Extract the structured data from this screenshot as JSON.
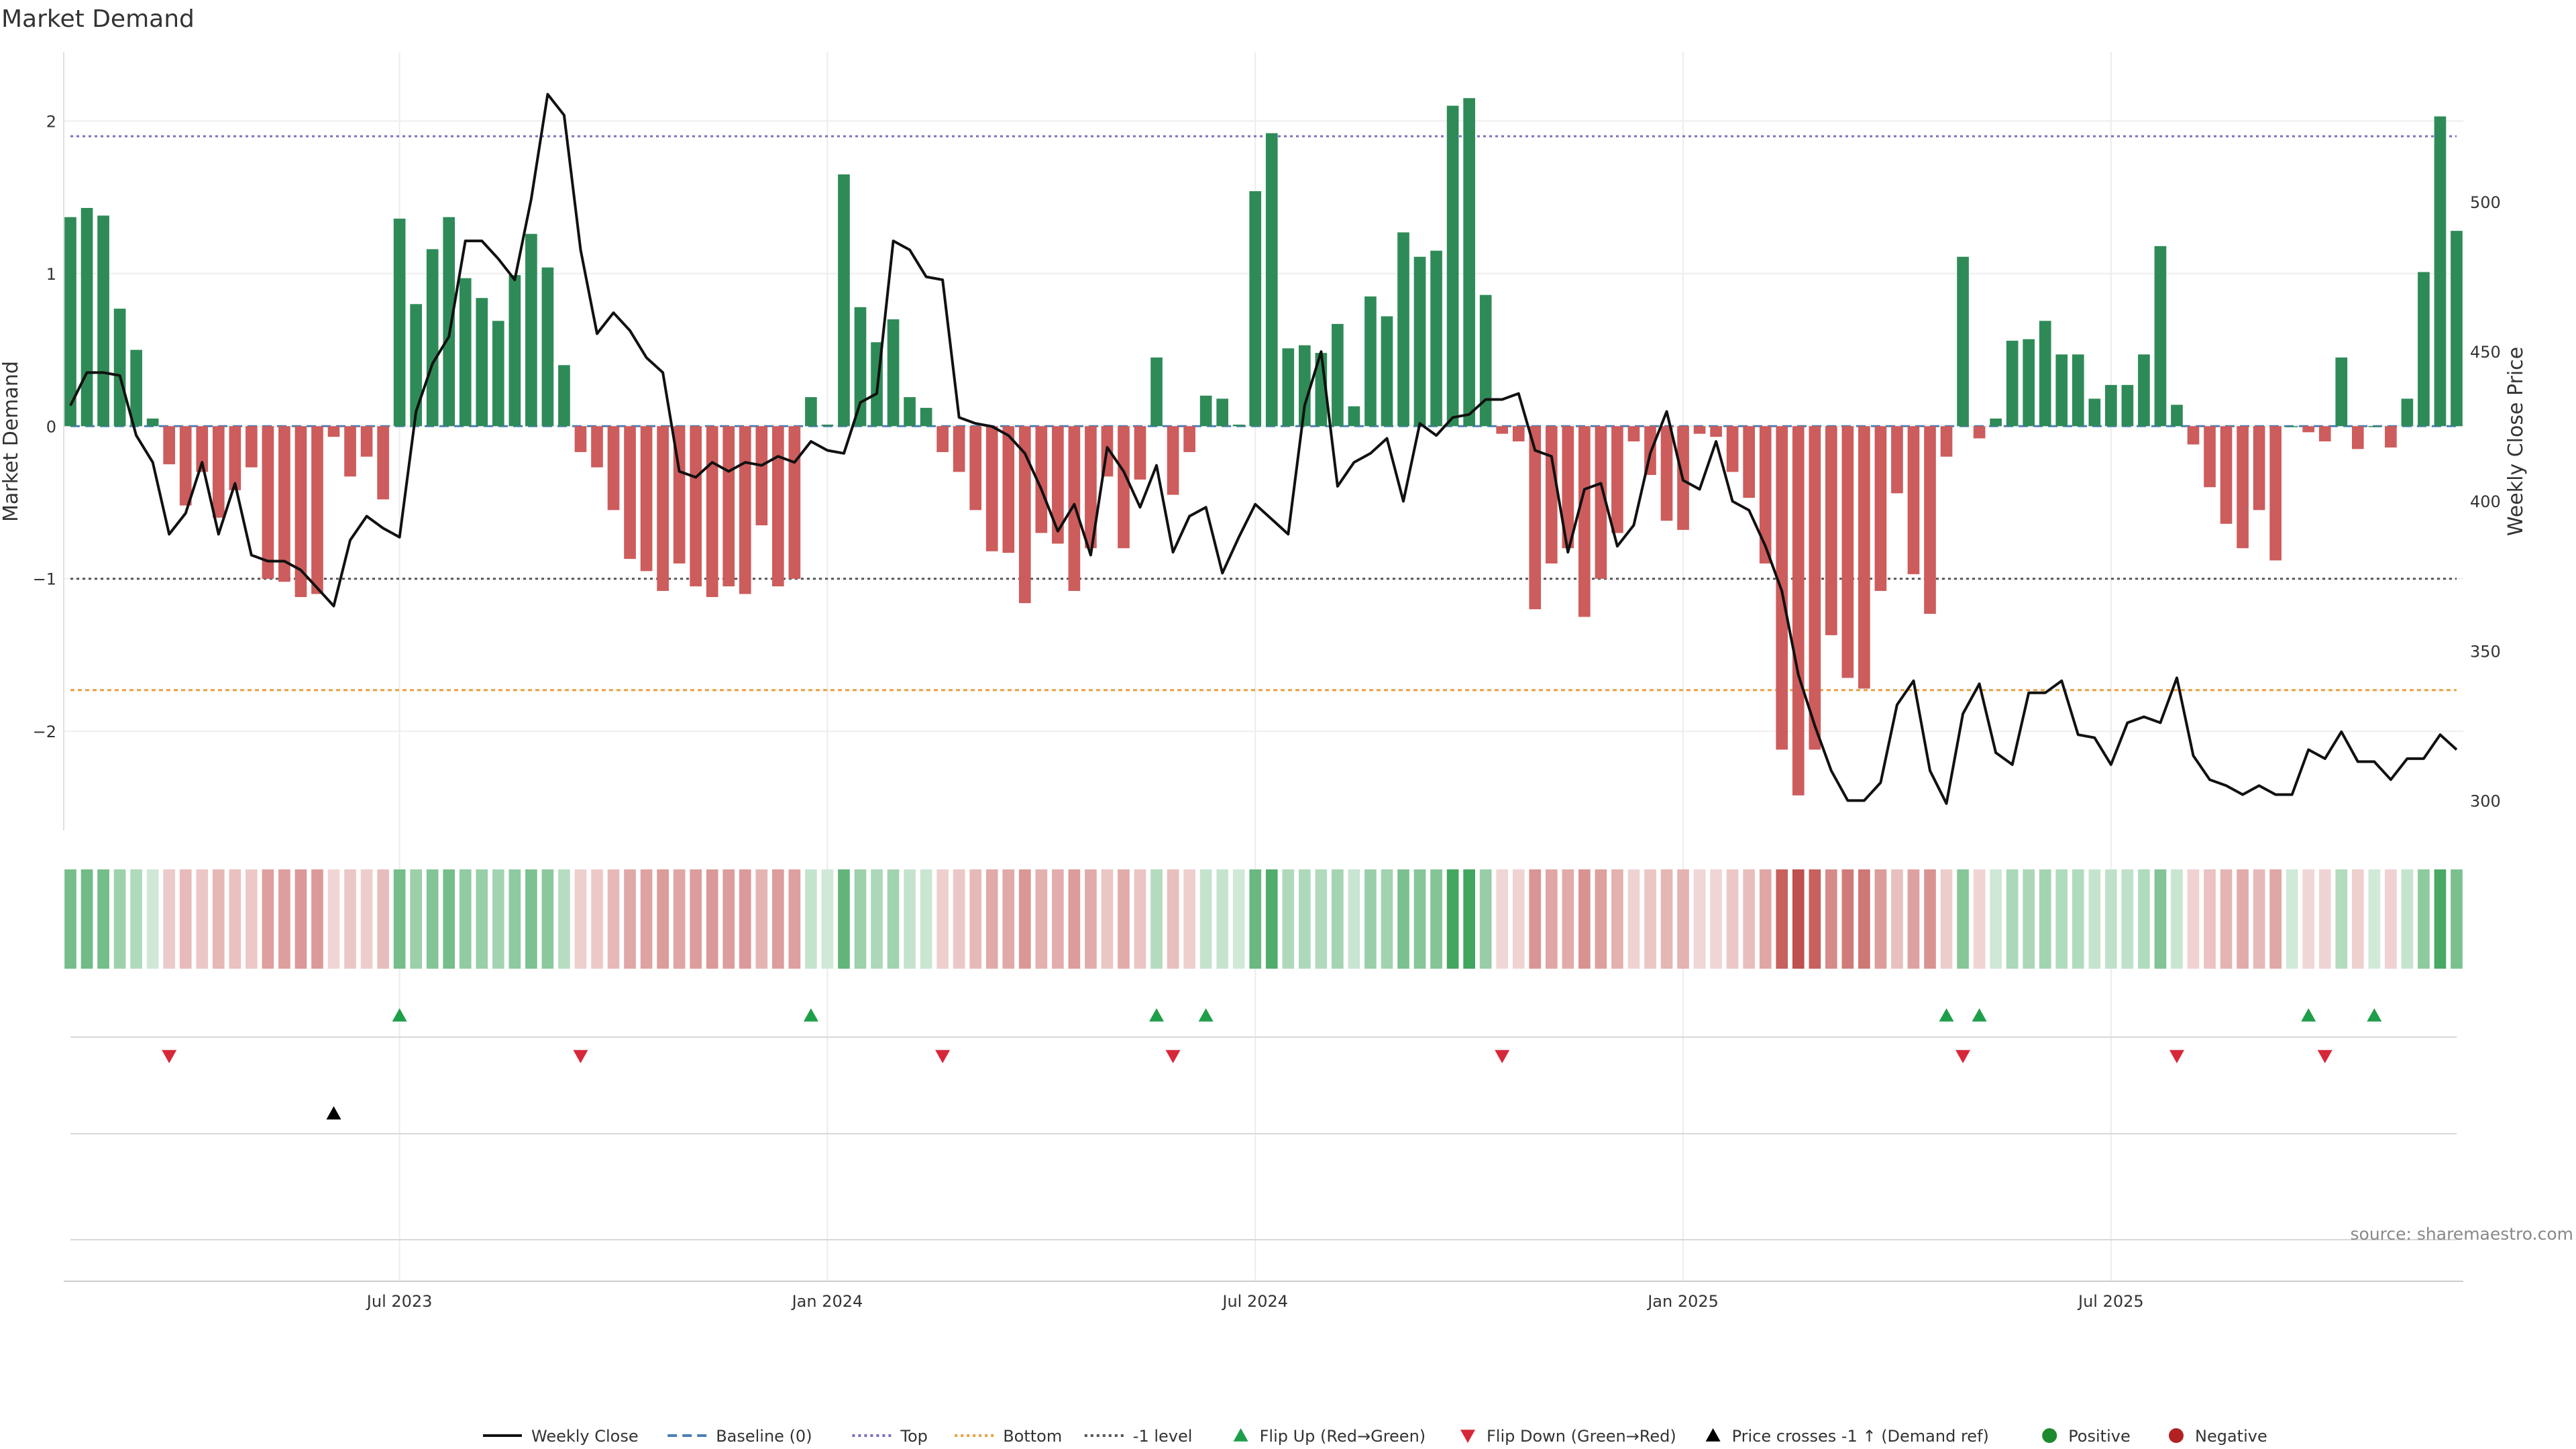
{
  "chart_data": {
    "type": "bar",
    "title": "Market Demand",
    "ylabel": "Market Demand",
    "y2label": "Weekly Close Price",
    "ylim": [
      -2.65,
      2.45
    ],
    "y2lim": [
      290,
      550
    ],
    "yticks": [
      2,
      1,
      0,
      -1,
      -2
    ],
    "y2ticks": [
      500,
      450,
      400,
      350,
      300
    ],
    "x_tick_labels": [
      "Jul 2023",
      "Jan 2024",
      "Jul 2024",
      "Jan 2025",
      "Jul 2025"
    ],
    "x_tick_index": [
      20,
      46,
      72,
      98,
      124
    ],
    "reference_lines": {
      "top": 1.9,
      "baseline": 0,
      "minus_one": -1,
      "bottom": -1.73
    },
    "demand": [
      1.37,
      1.43,
      1.38,
      0.77,
      0.5,
      0.05,
      -0.25,
      -0.52,
      -0.3,
      -0.6,
      -0.42,
      -0.27,
      -1.0,
      -1.02,
      -1.12,
      -1.1,
      -0.07,
      -0.33,
      -0.2,
      -0.48,
      1.36,
      0.8,
      1.16,
      1.37,
      0.97,
      0.84,
      0.69,
      0.99,
      1.26,
      1.04,
      0.4,
      -0.17,
      -0.27,
      -0.55,
      -0.87,
      -0.95,
      -1.08,
      -0.9,
      -1.05,
      -1.12,
      -1.05,
      -1.1,
      -0.65,
      -1.05,
      -1.0,
      0.19,
      0.01,
      1.65,
      0.78,
      0.55,
      0.7,
      0.19,
      0.12,
      -0.17,
      -0.3,
      -0.55,
      -0.82,
      -0.83,
      -1.16,
      -0.7,
      -0.77,
      -1.08,
      -0.8,
      -0.33,
      -0.8,
      -0.35,
      0.45,
      -0.45,
      -0.17,
      0.2,
      0.18,
      0.01,
      1.54,
      1.92,
      0.51,
      0.53,
      0.48,
      0.67,
      0.13,
      0.85,
      0.72,
      1.27,
      1.11,
      1.15,
      2.1,
      2.15,
      0.86,
      -0.05,
      -0.1,
      -1.2,
      -0.9,
      -0.8,
      -1.25,
      -1.0,
      -0.7,
      -0.1,
      -0.32,
      -0.62,
      -0.68,
      -0.05,
      -0.07,
      -0.3,
      -0.47,
      -0.9,
      -2.12,
      -2.42,
      -2.12,
      -1.37,
      -1.65,
      -1.72,
      -1.08,
      -0.44,
      -0.97,
      -1.23,
      -0.2,
      1.11,
      -0.08,
      0.05,
      0.56,
      0.57,
      0.69,
      0.47,
      0.47,
      0.18,
      0.27,
      0.27,
      0.47,
      1.18,
      0.14,
      -0.12,
      -0.4,
      -0.64,
      -0.8,
      -0.55,
      -0.88,
      0.0,
      -0.04,
      -0.1,
      0.45,
      -0.15,
      0.0,
      -0.14,
      0.18,
      1.01,
      2.03,
      1.28
    ],
    "weekly_close": [
      432,
      443,
      443,
      442,
      422,
      413,
      389,
      396,
      413,
      389,
      406,
      382,
      380,
      380,
      377,
      371,
      365,
      387,
      395,
      391,
      388,
      430,
      446,
      455,
      487,
      487,
      481,
      474,
      501,
      536,
      529,
      484,
      456,
      463,
      457,
      448,
      443,
      410,
      408,
      413,
      410,
      413,
      412,
      415,
      413,
      420,
      417,
      416,
      433,
      436,
      487,
      484,
      475,
      474,
      428,
      426,
      425,
      422,
      416,
      404,
      390,
      399,
      382,
      418,
      410,
      398,
      412,
      383,
      395,
      398,
      376,
      388,
      399,
      394,
      389,
      432,
      450,
      405,
      413,
      416,
      421,
      400,
      426,
      422,
      428,
      429,
      434,
      434,
      436,
      417,
      415,
      383,
      404,
      406,
      385,
      392,
      416,
      430,
      407,
      404,
      420,
      400,
      397,
      385,
      370,
      342,
      325,
      310,
      300,
      300,
      306,
      332,
      340,
      310,
      299,
      329,
      339,
      316,
      312,
      336,
      336,
      340,
      322,
      321,
      312,
      326,
      328,
      326,
      341,
      315,
      307,
      305,
      302,
      305,
      302,
      302,
      317,
      314,
      323,
      313,
      313,
      307,
      314,
      314,
      322,
      317
    ]
  },
  "source": "source: sharemaestro.com",
  "flip_up_index": [
    20,
    45,
    66,
    69,
    114,
    116,
    136,
    140
  ],
  "flip_down_index": [
    6,
    31,
    53,
    67,
    87,
    115,
    128,
    137
  ],
  "price_cross_index": [
    16
  ],
  "colors": {
    "positive": "#2e8b57",
    "negative": "#cd5c5c",
    "price": "#111111",
    "flip_up": "#1f9e4a",
    "flip_down": "#d62839",
    "cross": "#000000",
    "top_line": "#7b6fc0",
    "bottom_line": "#e8a040",
    "minus_one_line": "#555555",
    "baseline_line": "#4a7fb5",
    "dot_positive": "#1e8a2e",
    "dot_negative": "#b22222"
  },
  "legend": [
    {
      "label": "Weekly Close",
      "kind": "line-solid",
      "color": "#111111"
    },
    {
      "label": "Baseline (0)",
      "kind": "line-dashed",
      "color": "#4a7fb5"
    },
    {
      "label": "Top",
      "kind": "line-dotted",
      "color": "#7b6fc0"
    },
    {
      "label": "Bottom",
      "kind": "line-dotted",
      "color": "#e8a040"
    },
    {
      "label": "-1 level",
      "kind": "line-dotted",
      "color": "#555555"
    },
    {
      "label": "Flip Up (Red→Green)",
      "kind": "tri-up",
      "color": "#1f9e4a"
    },
    {
      "label": "Flip Down (Green→Red)",
      "kind": "tri-down",
      "color": "#d62839"
    },
    {
      "label": "Price crosses -1 ↑ (Demand ref)",
      "kind": "tri-up",
      "color": "#000000"
    },
    {
      "label": "Positive",
      "kind": "dot",
      "color": "#1e8a2e"
    },
    {
      "label": "Negative",
      "kind": "dot",
      "color": "#b22222"
    }
  ]
}
